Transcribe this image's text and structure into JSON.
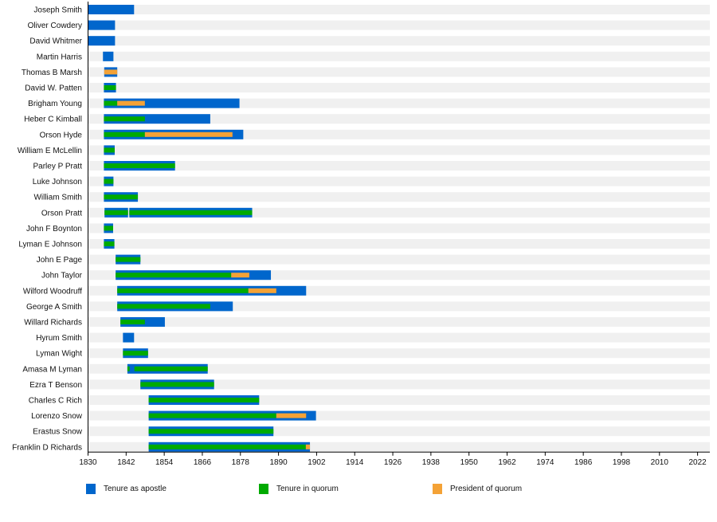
{
  "chart_data": {
    "type": "bar",
    "subtype": "timeline",
    "title": "",
    "xlabel": "",
    "ylabel": "",
    "xlim": [
      1830,
      2026
    ],
    "x_ticks": [
      "1830",
      "1842",
      "1854",
      "1866",
      "1878",
      "1890",
      "1902",
      "1914",
      "1926",
      "1938",
      "1950",
      "1962",
      "1974",
      "1986",
      "1998",
      "2010",
      "2022"
    ],
    "grid": false,
    "legend_position": "bottom",
    "colors": {
      "apostle": "#0066cc",
      "quorum": "#00aa00",
      "president": "#f4a236",
      "stripe": "#f0f0f0"
    },
    "legend": [
      {
        "key": "apostle",
        "label": "Tenure as apostle"
      },
      {
        "key": "quorum",
        "label": "Tenure in quorum"
      },
      {
        "key": "president",
        "label": "President of quorum"
      }
    ],
    "rows": [
      {
        "name": "Joseph Smith",
        "apostle": [
          [
            1830,
            1844.5
          ]
        ],
        "quorum": [],
        "president": []
      },
      {
        "name": "Oliver Cowdery",
        "apostle": [
          [
            1830,
            1838.5
          ]
        ],
        "quorum": [],
        "president": []
      },
      {
        "name": "David Whitmer",
        "apostle": [
          [
            1830,
            1838.5
          ]
        ],
        "quorum": [],
        "president": []
      },
      {
        "name": "Martin Harris",
        "apostle": [
          [
            1834.7,
            1838
          ]
        ],
        "quorum": [],
        "president": []
      },
      {
        "name": "Thomas B Marsh",
        "apostle": [
          [
            1835.1,
            1839.2
          ]
        ],
        "quorum": [],
        "president": [
          [
            1835.1,
            1839.2
          ]
        ]
      },
      {
        "name": "David W. Patten",
        "apostle": [
          [
            1835,
            1838.8
          ]
        ],
        "quorum": [
          [
            1835,
            1838.8
          ]
        ],
        "president": []
      },
      {
        "name": "Brigham Young",
        "apostle": [
          [
            1835,
            1877.7
          ]
        ],
        "quorum": [
          [
            1835,
            1839.2
          ]
        ],
        "president": [
          [
            1839.2,
            1847.9
          ]
        ]
      },
      {
        "name": "Heber C Kimball",
        "apostle": [
          [
            1835,
            1868.5
          ]
        ],
        "quorum": [
          [
            1835,
            1847.9
          ]
        ],
        "president": []
      },
      {
        "name": "Orson Hyde",
        "apostle": [
          [
            1835,
            1878.9
          ]
        ],
        "quorum": [
          [
            1835,
            1847.9
          ]
        ],
        "president": [
          [
            1847.9,
            1875.5
          ]
        ]
      },
      {
        "name": "William E McLellin",
        "apostle": [
          [
            1835,
            1838.4
          ]
        ],
        "quorum": [
          [
            1835,
            1838.4
          ]
        ],
        "president": []
      },
      {
        "name": "Parley P Pratt",
        "apostle": [
          [
            1835,
            1857.4
          ]
        ],
        "quorum": [
          [
            1835,
            1857.4
          ]
        ],
        "president": []
      },
      {
        "name": "Luke Johnson",
        "apostle": [
          [
            1835,
            1838
          ]
        ],
        "quorum": [
          [
            1835,
            1838
          ]
        ],
        "president": []
      },
      {
        "name": "William Smith",
        "apostle": [
          [
            1835,
            1845.7
          ]
        ],
        "quorum": [
          [
            1835,
            1845.7
          ]
        ],
        "president": []
      },
      {
        "name": "Orson Pratt",
        "apostle": [
          [
            1835.2,
            1842.6
          ],
          [
            1843,
            1881.7
          ]
        ],
        "quorum": [
          [
            1835.2,
            1842.6
          ],
          [
            1843,
            1881.7
          ]
        ],
        "president": []
      },
      {
        "name": "John F Boynton",
        "apostle": [
          [
            1835,
            1837.9
          ]
        ],
        "quorum": [
          [
            1835,
            1837.9
          ]
        ],
        "president": []
      },
      {
        "name": "Lyman E Johnson",
        "apostle": [
          [
            1835,
            1838.3
          ]
        ],
        "quorum": [
          [
            1835,
            1838.3
          ]
        ],
        "president": []
      },
      {
        "name": "John E Page",
        "apostle": [
          [
            1838.7,
            1846.5
          ]
        ],
        "quorum": [
          [
            1838.7,
            1846.5
          ]
        ],
        "president": []
      },
      {
        "name": "John Taylor",
        "apostle": [
          [
            1838.7,
            1887.6
          ]
        ],
        "quorum": [
          [
            1838.7,
            1875.1
          ]
        ],
        "president": [
          [
            1875.1,
            1880.8
          ]
        ]
      },
      {
        "name": "Wilford Woodruff",
        "apostle": [
          [
            1839.2,
            1898.7
          ]
        ],
        "quorum": [
          [
            1839.2,
            1880.5
          ]
        ],
        "president": [
          [
            1880.5,
            1889.3
          ]
        ]
      },
      {
        "name": "George A Smith",
        "apostle": [
          [
            1839.2,
            1875.6
          ]
        ],
        "quorum": [
          [
            1839.2,
            1868.5
          ]
        ],
        "president": []
      },
      {
        "name": "Willard Richards",
        "apostle": [
          [
            1840.2,
            1854.2
          ]
        ],
        "quorum": [
          [
            1840.2,
            1847.9
          ]
        ],
        "president": []
      },
      {
        "name": "Hyrum Smith",
        "apostle": [
          [
            1841,
            1844.5
          ]
        ],
        "quorum": [],
        "president": []
      },
      {
        "name": "Lyman Wight",
        "apostle": [
          [
            1841,
            1848.9
          ]
        ],
        "quorum": [
          [
            1841,
            1848.9
          ]
        ],
        "president": []
      },
      {
        "name": "Amasa M Lyman",
        "apostle": [
          [
            1842.4,
            1867.7
          ]
        ],
        "quorum": [
          [
            1842.4,
            1843.1
          ],
          [
            1844.6,
            1867.7
          ]
        ],
        "president": []
      },
      {
        "name": "Ezra T Benson",
        "apostle": [
          [
            1846.5,
            1869.7
          ]
        ],
        "quorum": [
          [
            1846.5,
            1869.7
          ]
        ],
        "president": []
      },
      {
        "name": "Charles C Rich",
        "apostle": [
          [
            1849.1,
            1883.9
          ]
        ],
        "quorum": [
          [
            1849.1,
            1883.9
          ]
        ],
        "president": []
      },
      {
        "name": "Lorenzo Snow",
        "apostle": [
          [
            1849.1,
            1901.8
          ]
        ],
        "quorum": [
          [
            1849.1,
            1889.3
          ]
        ],
        "president": [
          [
            1889.3,
            1898.7
          ]
        ]
      },
      {
        "name": "Erastus Snow",
        "apostle": [
          [
            1849.1,
            1888.4
          ]
        ],
        "quorum": [
          [
            1849.1,
            1888.4
          ]
        ],
        "president": []
      },
      {
        "name": "Franklin D Richards",
        "apostle": [
          [
            1849.1,
            1899.9
          ]
        ],
        "quorum": [
          [
            1849.1,
            1898.6
          ]
        ],
        "president": [
          [
            1898.6,
            1899.9
          ]
        ]
      }
    ]
  }
}
